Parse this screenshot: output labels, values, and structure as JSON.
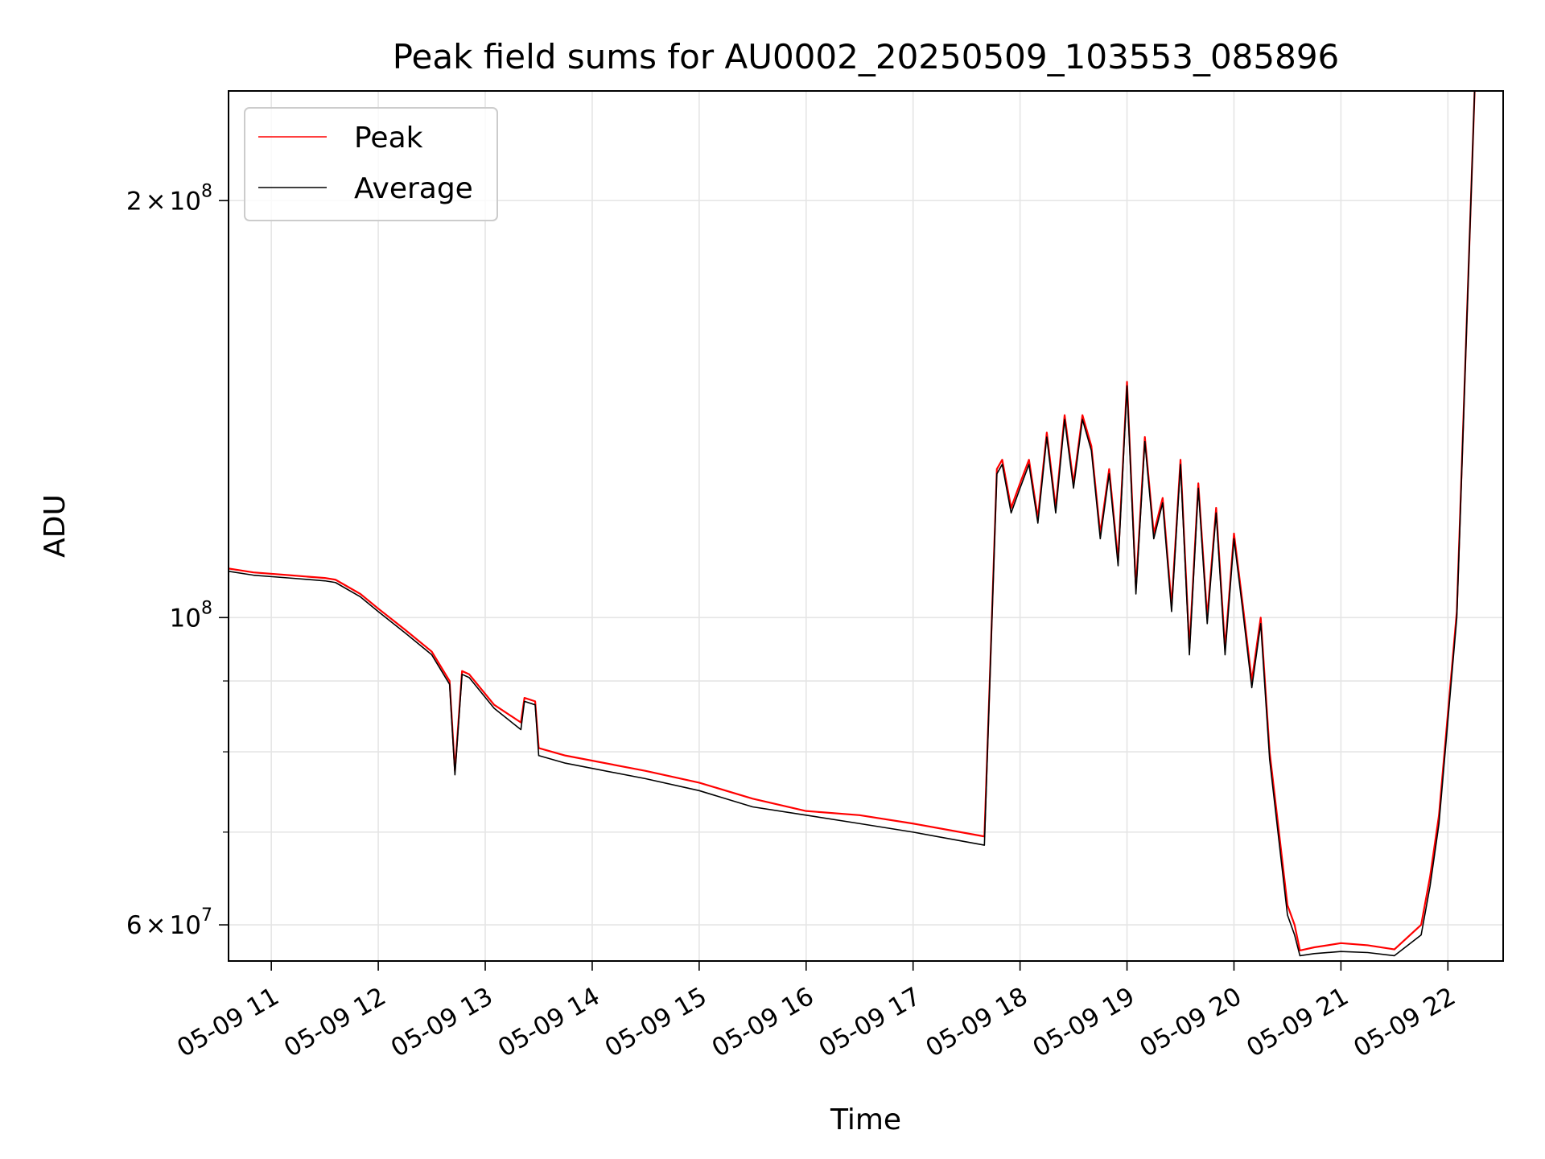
{
  "chart_data": {
    "type": "line",
    "title": "Peak field sums for AU0002_20250509_103553_085896",
    "xlabel": "Time",
    "ylabel": "ADU",
    "y_scale": "log",
    "ylim": [
      56500000,
      240000000
    ],
    "xlim": [
      "2025-05-09 10:36",
      "2025-05-09 22:31"
    ],
    "grid": true,
    "legend_position": "top-left",
    "x_ticks": [
      {
        "at": "2025-05-09 11:00",
        "label": "05-09 11"
      },
      {
        "at": "2025-05-09 12:00",
        "label": "05-09 12"
      },
      {
        "at": "2025-05-09 13:00",
        "label": "05-09 13"
      },
      {
        "at": "2025-05-09 14:00",
        "label": "05-09 14"
      },
      {
        "at": "2025-05-09 15:00",
        "label": "05-09 15"
      },
      {
        "at": "2025-05-09 16:00",
        "label": "05-09 16"
      },
      {
        "at": "2025-05-09 17:00",
        "label": "05-09 17"
      },
      {
        "at": "2025-05-09 18:00",
        "label": "05-09 18"
      },
      {
        "at": "2025-05-09 19:00",
        "label": "05-09 19"
      },
      {
        "at": "2025-05-09 20:00",
        "label": "05-09 20"
      },
      {
        "at": "2025-05-09 21:00",
        "label": "05-09 21"
      },
      {
        "at": "2025-05-09 22:00",
        "label": "05-09 22"
      }
    ],
    "y_ticks_major": [
      {
        "value": 60000000,
        "label_base": "6",
        "label_times": "×",
        "label_ten": "10",
        "label_exp": "7"
      },
      {
        "value": 100000000,
        "label_base": "",
        "label_times": "",
        "label_ten": "10",
        "label_exp": "8"
      },
      {
        "value": 200000000,
        "label_base": "2",
        "label_times": "×",
        "label_ten": "10",
        "label_exp": "8"
      }
    ],
    "y_ticks_minor": [
      70000000,
      80000000,
      90000000
    ],
    "series": [
      {
        "name": "Peak",
        "color": "#ff0000",
        "x": [
          "2025-05-09 10:36",
          "2025-05-09 10:50",
          "2025-05-09 11:10",
          "2025-05-09 11:30",
          "2025-05-09 11:36",
          "2025-05-09 11:50",
          "2025-05-09 12:00",
          "2025-05-09 12:15",
          "2025-05-09 12:30",
          "2025-05-09 12:40",
          "2025-05-09 12:43",
          "2025-05-09 12:47",
          "2025-05-09 12:51",
          "2025-05-09 13:05",
          "2025-05-09 13:20",
          "2025-05-09 13:22",
          "2025-05-09 13:28",
          "2025-05-09 13:30",
          "2025-05-09 13:45",
          "2025-05-09 14:30",
          "2025-05-09 15:00",
          "2025-05-09 15:30",
          "2025-05-09 16:00",
          "2025-05-09 16:30",
          "2025-05-09 17:00",
          "2025-05-09 17:40",
          "2025-05-09 17:43",
          "2025-05-09 17:47",
          "2025-05-09 17:50",
          "2025-05-09 17:55",
          "2025-05-09 18:00",
          "2025-05-09 18:05",
          "2025-05-09 18:10",
          "2025-05-09 18:15",
          "2025-05-09 18:20",
          "2025-05-09 18:25",
          "2025-05-09 18:30",
          "2025-05-09 18:35",
          "2025-05-09 18:40",
          "2025-05-09 18:45",
          "2025-05-09 18:50",
          "2025-05-09 18:55",
          "2025-05-09 19:00",
          "2025-05-09 19:05",
          "2025-05-09 19:10",
          "2025-05-09 19:15",
          "2025-05-09 19:20",
          "2025-05-09 19:25",
          "2025-05-09 19:30",
          "2025-05-09 19:35",
          "2025-05-09 19:40",
          "2025-05-09 19:45",
          "2025-05-09 19:50",
          "2025-05-09 19:55",
          "2025-05-09 20:00",
          "2025-05-09 20:05",
          "2025-05-09 20:10",
          "2025-05-09 20:15",
          "2025-05-09 20:20",
          "2025-05-09 20:30",
          "2025-05-09 20:34",
          "2025-05-09 20:37",
          "2025-05-09 20:45",
          "2025-05-09 21:00",
          "2025-05-09 21:15",
          "2025-05-09 21:30",
          "2025-05-09 21:45",
          "2025-05-09 21:50",
          "2025-05-09 21:55",
          "2025-05-09 22:05",
          "2025-05-09 22:15"
        ],
        "values": [
          108500000,
          107800000,
          107300000,
          106800000,
          106500000,
          104000000,
          101500000,
          98000000,
          94500000,
          90000000,
          77500000,
          91500000,
          91000000,
          86500000,
          84000000,
          87500000,
          87000000,
          80500000,
          79500000,
          77500000,
          76000000,
          74000000,
          72500000,
          72000000,
          71000000,
          69500000,
          90000000,
          128000000,
          130000000,
          120000000,
          125000000,
          130000000,
          118000000,
          136000000,
          120000000,
          140000000,
          125000000,
          140000000,
          133000000,
          115000000,
          128000000,
          110000000,
          148000000,
          105000000,
          135000000,
          115000000,
          122000000,
          102000000,
          130000000,
          95000000,
          125000000,
          100000000,
          120000000,
          95000000,
          115000000,
          102000000,
          90000000,
          100000000,
          80000000,
          62000000,
          60000000,
          57500000,
          57800000,
          58200000,
          58000000,
          57600000,
          60000000,
          65000000,
          72000000,
          101000000,
          240000000
        ]
      },
      {
        "name": "Average",
        "color": "#000000",
        "x": [
          "2025-05-09 10:36",
          "2025-05-09 10:50",
          "2025-05-09 11:10",
          "2025-05-09 11:30",
          "2025-05-09 11:36",
          "2025-05-09 11:50",
          "2025-05-09 12:00",
          "2025-05-09 12:15",
          "2025-05-09 12:30",
          "2025-05-09 12:40",
          "2025-05-09 12:43",
          "2025-05-09 12:47",
          "2025-05-09 12:51",
          "2025-05-09 13:05",
          "2025-05-09 13:20",
          "2025-05-09 13:22",
          "2025-05-09 13:28",
          "2025-05-09 13:30",
          "2025-05-09 13:45",
          "2025-05-09 14:30",
          "2025-05-09 15:00",
          "2025-05-09 15:30",
          "2025-05-09 16:00",
          "2025-05-09 16:30",
          "2025-05-09 17:00",
          "2025-05-09 17:40",
          "2025-05-09 17:43",
          "2025-05-09 17:47",
          "2025-05-09 17:50",
          "2025-05-09 17:55",
          "2025-05-09 18:00",
          "2025-05-09 18:05",
          "2025-05-09 18:10",
          "2025-05-09 18:15",
          "2025-05-09 18:20",
          "2025-05-09 18:25",
          "2025-05-09 18:30",
          "2025-05-09 18:35",
          "2025-05-09 18:40",
          "2025-05-09 18:45",
          "2025-05-09 18:50",
          "2025-05-09 18:55",
          "2025-05-09 19:00",
          "2025-05-09 19:05",
          "2025-05-09 19:10",
          "2025-05-09 19:15",
          "2025-05-09 19:20",
          "2025-05-09 19:25",
          "2025-05-09 19:30",
          "2025-05-09 19:35",
          "2025-05-09 19:40",
          "2025-05-09 19:45",
          "2025-05-09 19:50",
          "2025-05-09 19:55",
          "2025-05-09 20:00",
          "2025-05-09 20:05",
          "2025-05-09 20:10",
          "2025-05-09 20:15",
          "2025-05-09 20:20",
          "2025-05-09 20:30",
          "2025-05-09 20:34",
          "2025-05-09 20:37",
          "2025-05-09 20:45",
          "2025-05-09 21:00",
          "2025-05-09 21:15",
          "2025-05-09 21:30",
          "2025-05-09 21:45",
          "2025-05-09 21:50",
          "2025-05-09 21:55",
          "2025-05-09 22:05",
          "2025-05-09 22:15"
        ],
        "values": [
          108000000,
          107300000,
          106800000,
          106300000,
          106000000,
          103500000,
          101000000,
          97500000,
          94000000,
          89500000,
          77000000,
          91000000,
          90500000,
          86000000,
          83000000,
          87000000,
          86500000,
          79500000,
          78500000,
          76500000,
          75000000,
          73000000,
          72000000,
          71000000,
          70000000,
          68500000,
          89500000,
          127000000,
          129000000,
          119000000,
          124000000,
          129000000,
          117000000,
          135000000,
          119000000,
          139000000,
          124000000,
          139000000,
          132000000,
          114000000,
          127000000,
          109000000,
          147000000,
          104000000,
          134000000,
          114000000,
          121000000,
          101000000,
          129000000,
          94000000,
          124000000,
          99000000,
          119000000,
          94000000,
          114000000,
          101000000,
          89000000,
          99000000,
          79000000,
          61000000,
          59000000,
          57000000,
          57200000,
          57400000,
          57300000,
          57000000,
          59000000,
          64000000,
          71000000,
          100000000,
          240000000
        ]
      }
    ]
  }
}
